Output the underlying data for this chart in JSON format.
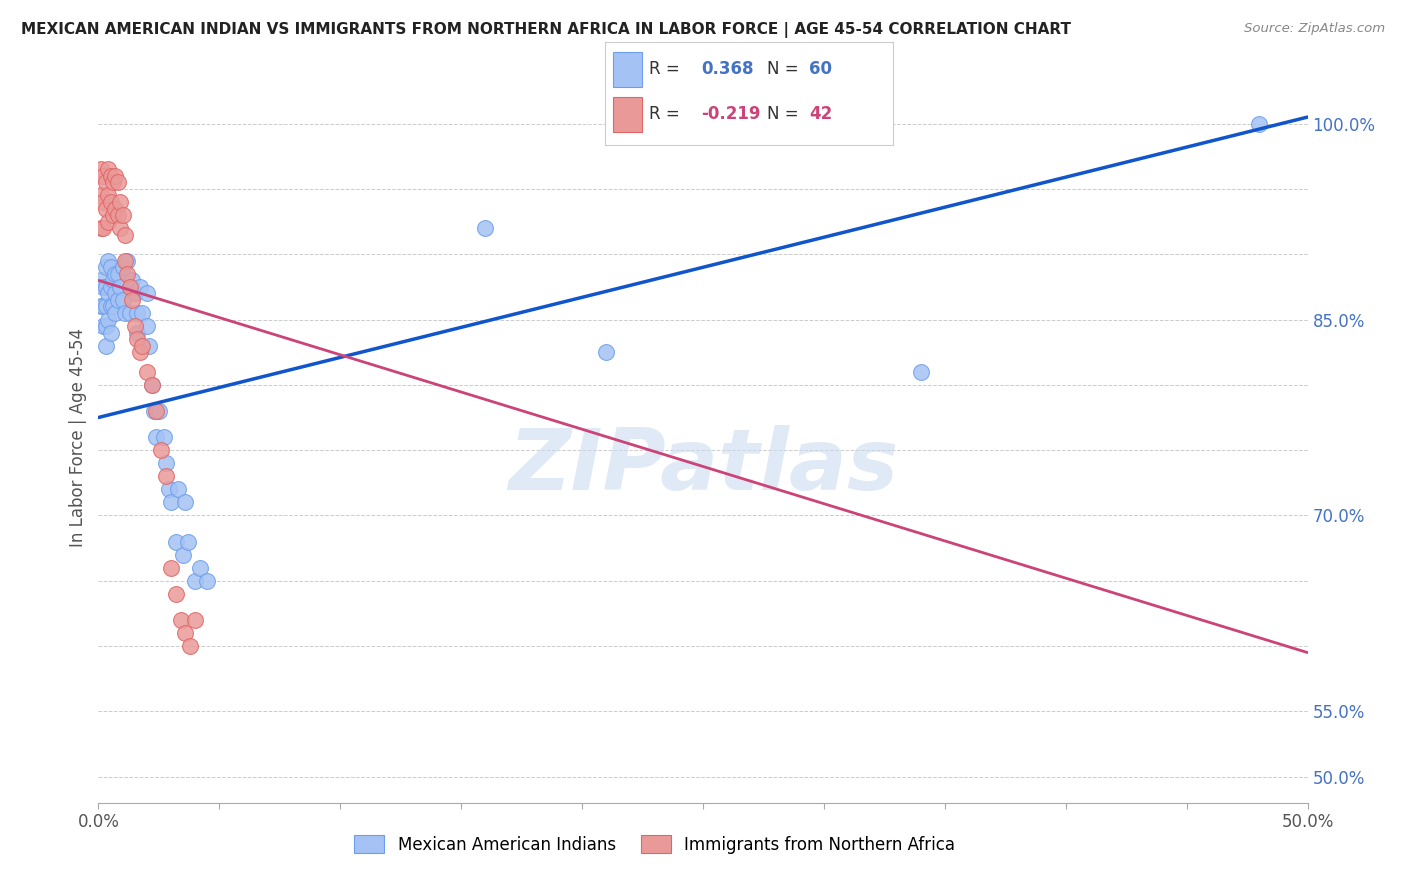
{
  "title": "MEXICAN AMERICAN INDIAN VS IMMIGRANTS FROM NORTHERN AFRICA IN LABOR FORCE | AGE 45-54 CORRELATION CHART",
  "source": "Source: ZipAtlas.com",
  "ylabel": "In Labor Force | Age 45-54",
  "xlim": [
    0.0,
    0.5
  ],
  "ylim": [
    0.48,
    1.04
  ],
  "blue_color": "#a4c2f4",
  "pink_color": "#ea9999",
  "blue_edge_color": "#6d9eeb",
  "pink_edge_color": "#e06666",
  "blue_line_color": "#1155cc",
  "pink_line_color": "#cc4477",
  "R_blue": 0.368,
  "N_blue": 60,
  "R_pink": -0.219,
  "N_pink": 42,
  "blue_line_x0": 0.0,
  "blue_line_y0": 0.775,
  "blue_line_x1": 0.5,
  "blue_line_y1": 1.005,
  "pink_line_x0": 0.0,
  "pink_line_y0": 0.88,
  "pink_line_x1": 0.5,
  "pink_line_y1": 0.595,
  "blue_scatter_x": [
    0.001,
    0.001,
    0.002,
    0.002,
    0.002,
    0.003,
    0.003,
    0.003,
    0.003,
    0.003,
    0.004,
    0.004,
    0.004,
    0.005,
    0.005,
    0.005,
    0.005,
    0.006,
    0.006,
    0.007,
    0.007,
    0.007,
    0.008,
    0.008,
    0.009,
    0.01,
    0.01,
    0.011,
    0.012,
    0.013,
    0.013,
    0.014,
    0.015,
    0.016,
    0.016,
    0.017,
    0.018,
    0.02,
    0.02,
    0.021,
    0.022,
    0.023,
    0.024,
    0.025,
    0.027,
    0.028,
    0.029,
    0.03,
    0.032,
    0.033,
    0.035,
    0.036,
    0.037,
    0.04,
    0.042,
    0.045,
    0.16,
    0.21,
    0.34,
    0.48
  ],
  "blue_scatter_y": [
    0.88,
    0.86,
    0.875,
    0.86,
    0.845,
    0.89,
    0.875,
    0.86,
    0.845,
    0.83,
    0.895,
    0.87,
    0.85,
    0.89,
    0.875,
    0.86,
    0.84,
    0.88,
    0.86,
    0.885,
    0.87,
    0.855,
    0.885,
    0.865,
    0.875,
    0.89,
    0.865,
    0.855,
    0.895,
    0.875,
    0.855,
    0.88,
    0.87,
    0.855,
    0.84,
    0.875,
    0.855,
    0.87,
    0.845,
    0.83,
    0.8,
    0.78,
    0.76,
    0.78,
    0.76,
    0.74,
    0.72,
    0.71,
    0.68,
    0.72,
    0.67,
    0.71,
    0.68,
    0.65,
    0.66,
    0.65,
    0.92,
    0.825,
    0.81,
    1.0
  ],
  "pink_scatter_x": [
    0.001,
    0.001,
    0.001,
    0.002,
    0.002,
    0.002,
    0.003,
    0.003,
    0.004,
    0.004,
    0.004,
    0.005,
    0.005,
    0.006,
    0.006,
    0.007,
    0.007,
    0.008,
    0.008,
    0.009,
    0.009,
    0.01,
    0.011,
    0.011,
    0.012,
    0.013,
    0.014,
    0.015,
    0.016,
    0.017,
    0.018,
    0.02,
    0.022,
    0.024,
    0.026,
    0.028,
    0.03,
    0.032,
    0.034,
    0.036,
    0.038,
    0.04
  ],
  "pink_scatter_y": [
    0.965,
    0.945,
    0.92,
    0.96,
    0.94,
    0.92,
    0.955,
    0.935,
    0.965,
    0.945,
    0.925,
    0.96,
    0.94,
    0.955,
    0.93,
    0.96,
    0.935,
    0.955,
    0.93,
    0.94,
    0.92,
    0.93,
    0.915,
    0.895,
    0.885,
    0.875,
    0.865,
    0.845,
    0.835,
    0.825,
    0.83,
    0.81,
    0.8,
    0.78,
    0.75,
    0.73,
    0.66,
    0.64,
    0.62,
    0.61,
    0.6,
    0.62
  ],
  "legend_blue_label": "Mexican American Indians",
  "legend_pink_label": "Immigrants from Northern Africa",
  "watermark": "ZIPatlas",
  "background_color": "#ffffff",
  "grid_color": "#cccccc",
  "ytick_positions": [
    0.5,
    0.55,
    0.6,
    0.65,
    0.7,
    0.75,
    0.8,
    0.85,
    0.9,
    0.95,
    1.0
  ],
  "ytick_show_labels": [
    0.5,
    0.55,
    0.7,
    0.85,
    1.0
  ]
}
